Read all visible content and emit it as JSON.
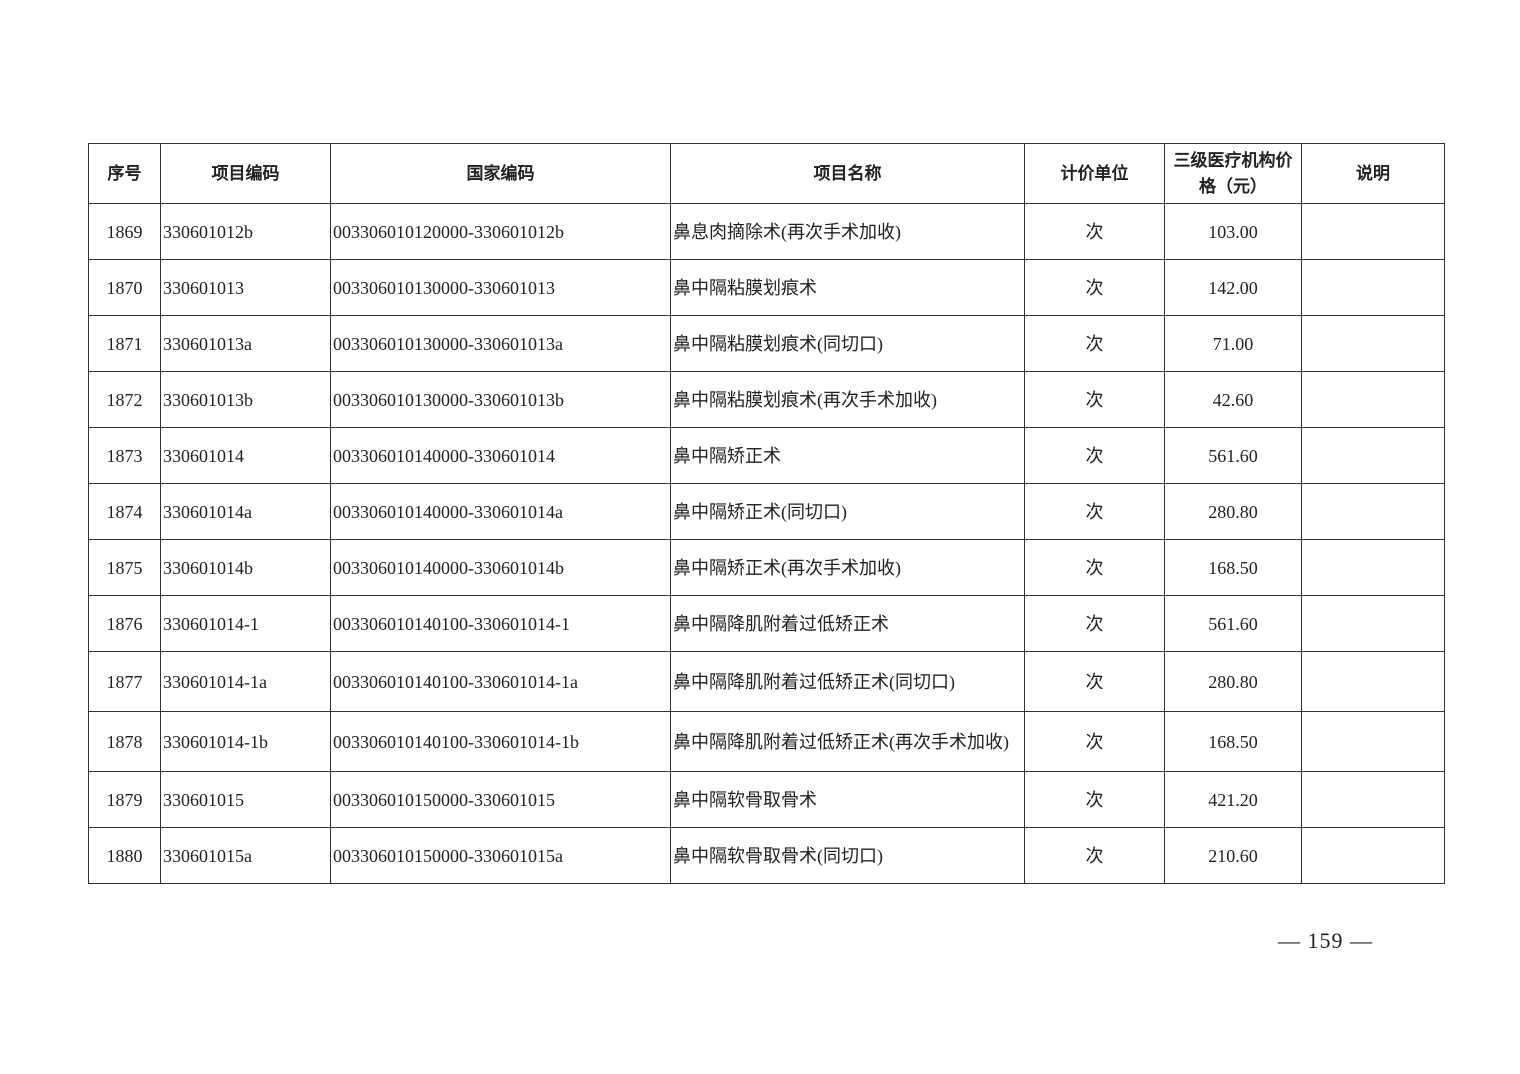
{
  "table": {
    "headers": [
      "序号",
      "项目编码",
      "国家编码",
      "项目名称",
      "计价单位",
      "三级医疗机构价格（元）",
      "说明"
    ],
    "rows": [
      [
        "1869",
        "330601012b",
        "003306010120000-330601012b",
        "鼻息肉摘除术(再次手术加收)",
        "次",
        "103.00",
        ""
      ],
      [
        "1870",
        "330601013",
        "003306010130000-330601013",
        "鼻中隔粘膜划痕术",
        "次",
        "142.00",
        ""
      ],
      [
        "1871",
        "330601013a",
        "003306010130000-330601013a",
        "鼻中隔粘膜划痕术(同切口)",
        "次",
        "71.00",
        ""
      ],
      [
        "1872",
        "330601013b",
        "003306010130000-330601013b",
        "鼻中隔粘膜划痕术(再次手术加收)",
        "次",
        "42.60",
        ""
      ],
      [
        "1873",
        "330601014",
        "003306010140000-330601014",
        "鼻中隔矫正术",
        "次",
        "561.60",
        ""
      ],
      [
        "1874",
        "330601014a",
        "003306010140000-330601014a",
        "鼻中隔矫正术(同切口)",
        "次",
        "280.80",
        ""
      ],
      [
        "1875",
        "330601014b",
        "003306010140000-330601014b",
        "鼻中隔矫正术(再次手术加收)",
        "次",
        "168.50",
        ""
      ],
      [
        "1876",
        "330601014-1",
        "003306010140100-330601014-1",
        "鼻中隔降肌附着过低矫正术",
        "次",
        "561.60",
        ""
      ],
      [
        "1877",
        "330601014-1a",
        "003306010140100-330601014-1a",
        "鼻中隔降肌附着过低矫正术(同切口)",
        "次",
        "280.80",
        ""
      ],
      [
        "1878",
        "330601014-1b",
        "003306010140100-330601014-1b",
        "鼻中隔降肌附着过低矫正术(再次手术加收)",
        "次",
        "168.50",
        ""
      ],
      [
        "1879",
        "330601015",
        "003306010150000-330601015",
        "鼻中隔软骨取骨术",
        "次",
        "421.20",
        ""
      ],
      [
        "1880",
        "330601015a",
        "003306010150000-330601015a",
        "鼻中隔软骨取骨术(同切口)",
        "次",
        "210.60",
        ""
      ]
    ]
  },
  "page_number": "— 159 —"
}
